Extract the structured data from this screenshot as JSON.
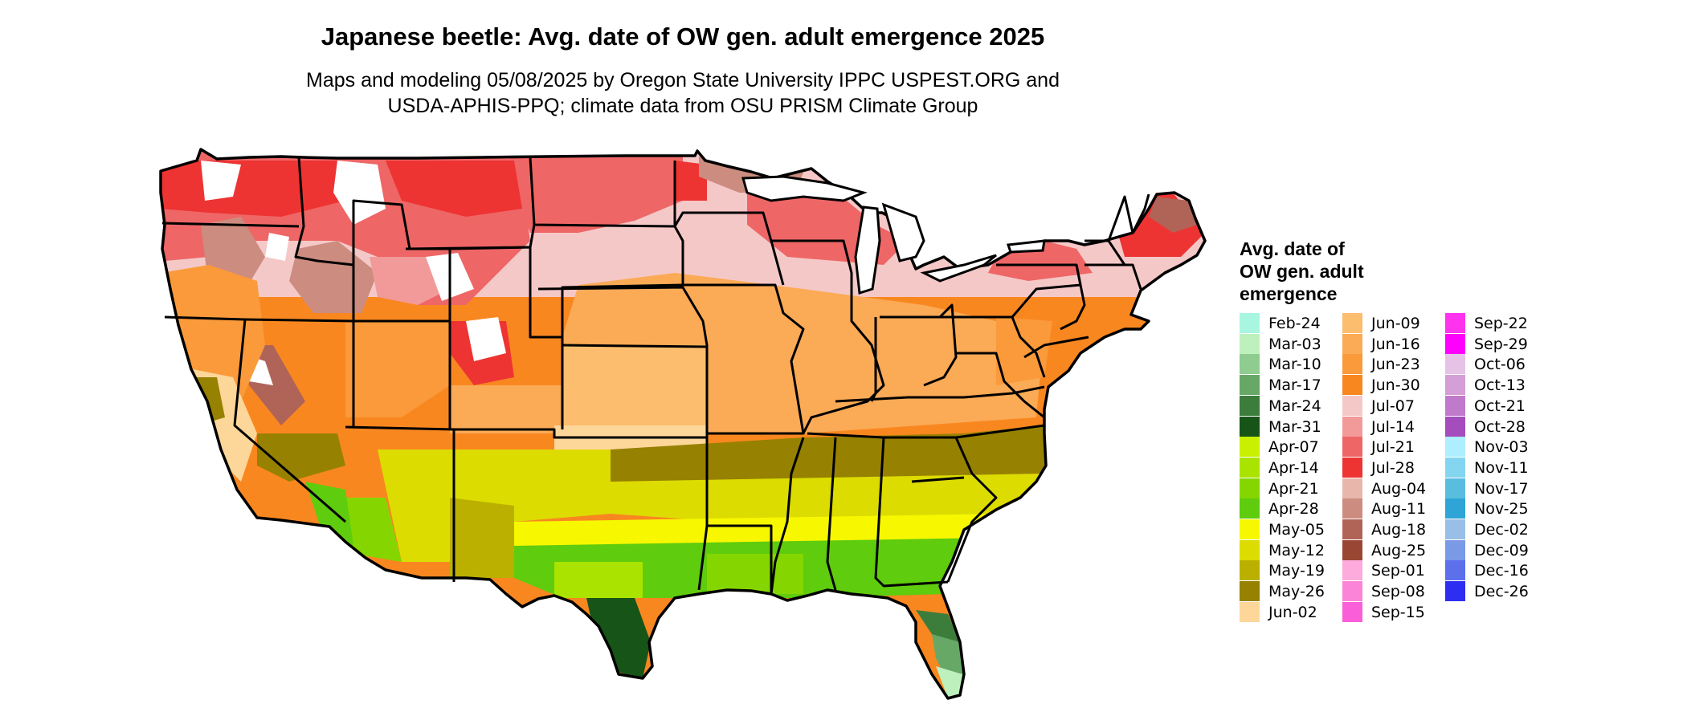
{
  "map": {
    "title": "Japanese beetle: Avg. date of OW gen. adult emergence 2025",
    "subtitle_line1": "Maps and modeling 05/08/2025 by Oregon State University IPPC USPEST.ORG and",
    "subtitle_line2": "USDA-APHIS-PPQ; climate data from OSU PRISM Climate Group"
  },
  "legend": {
    "title": "Avg. date of\nOW gen. adult\nemergence",
    "items": [
      {
        "label": "Feb-24",
        "color": "#a8f5e0"
      },
      {
        "label": "Mar-03",
        "color": "#bdf0bd"
      },
      {
        "label": "Mar-10",
        "color": "#8fcc8f"
      },
      {
        "label": "Mar-17",
        "color": "#67a867"
      },
      {
        "label": "Mar-24",
        "color": "#3c7d3c"
      },
      {
        "label": "Mar-31",
        "color": "#175417"
      },
      {
        "label": "Apr-07",
        "color": "#c8f000"
      },
      {
        "label": "Apr-14",
        "color": "#abe300"
      },
      {
        "label": "Apr-21",
        "color": "#85d600"
      },
      {
        "label": "Apr-28",
        "color": "#5fcc0d"
      },
      {
        "label": "May-05",
        "color": "#f7f700"
      },
      {
        "label": "May-12",
        "color": "#dcdc00"
      },
      {
        "label": "May-19",
        "color": "#bbb000"
      },
      {
        "label": "May-26",
        "color": "#978100"
      },
      {
        "label": "Jun-02",
        "color": "#fdd69a"
      },
      {
        "label": "Jun-09",
        "color": "#fcbd6e"
      },
      {
        "label": "Jun-16",
        "color": "#fbaa55"
      },
      {
        "label": "Jun-23",
        "color": "#fa9a3a"
      },
      {
        "label": "Jun-30",
        "color": "#f98720"
      },
      {
        "label": "Jul-07",
        "color": "#f5c8c8"
      },
      {
        "label": "Jul-14",
        "color": "#f29a9a"
      },
      {
        "label": "Jul-21",
        "color": "#ee6666"
      },
      {
        "label": "Jul-28",
        "color": "#ee3333"
      },
      {
        "label": "Aug-04",
        "color": "#e8b6aa"
      },
      {
        "label": "Aug-11",
        "color": "#cc8c80"
      },
      {
        "label": "Aug-18",
        "color": "#b06458"
      },
      {
        "label": "Aug-25",
        "color": "#9a4635"
      },
      {
        "label": "Sep-01",
        "color": "#fdaadd"
      },
      {
        "label": "Sep-08",
        "color": "#fc84d8"
      },
      {
        "label": "Sep-15",
        "color": "#fb5ed9"
      },
      {
        "label": "Sep-22",
        "color": "#ff33ee"
      },
      {
        "label": "Sep-29",
        "color": "#ff00ff"
      },
      {
        "label": "Oct-06",
        "color": "#e6c3e6"
      },
      {
        "label": "Oct-13",
        "color": "#d49fd6"
      },
      {
        "label": "Oct-21",
        "color": "#bf7acc"
      },
      {
        "label": "Oct-28",
        "color": "#a64dbd"
      },
      {
        "label": "Nov-03",
        "color": "#aeeefe"
      },
      {
        "label": "Nov-11",
        "color": "#84d6f0"
      },
      {
        "label": "Nov-17",
        "color": "#59bde0"
      },
      {
        "label": "Nov-25",
        "color": "#2ea5d6"
      },
      {
        "label": "Dec-02",
        "color": "#99bfe6"
      },
      {
        "label": "Dec-09",
        "color": "#7a99e6"
      },
      {
        "label": "Dec-16",
        "color": "#5c70eb"
      },
      {
        "label": "Dec-26",
        "color": "#2e2ef2"
      }
    ]
  }
}
